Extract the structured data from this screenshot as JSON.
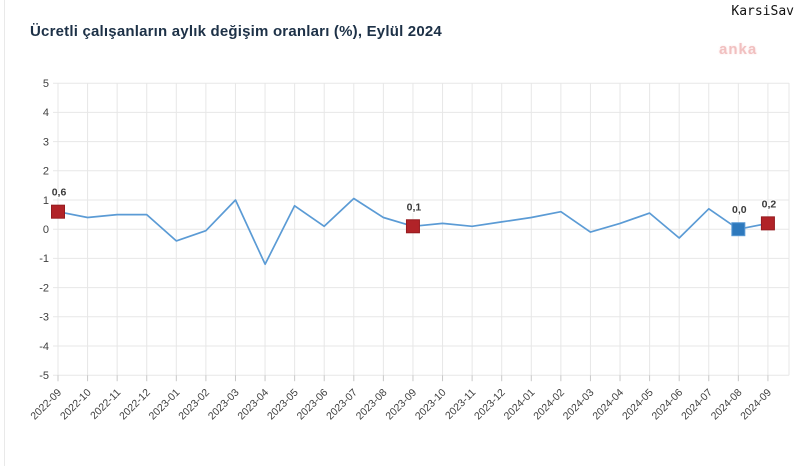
{
  "header": {
    "title": "Ücretli çalışanların aylık değişim oranları (%), Eylül 2024",
    "corner_text": "KarsiSav",
    "watermark": "anka"
  },
  "colors": {
    "title_text": "#1d3147",
    "line": "#5b9bd5",
    "marker_red_fill": "#b12328",
    "marker_red_stroke": "#951b1f",
    "marker_blue_fill": "#2e79bd",
    "marker_blue_stroke": "#5b9bd5",
    "grid": "#e7e7e7",
    "tick": "#c8c8c8",
    "axis_text": "#3f3f3f",
    "data_label_text": "#3a3a3a",
    "watermark_pink": "#edacac"
  },
  "chart_data": {
    "type": "line",
    "title": "Ücretli çalışanların aylık değişim oranları (%), Eylül 2024",
    "xlabel": "",
    "ylabel": "",
    "ylim": [
      -5,
      5
    ],
    "y_ticks": [
      5,
      4,
      3,
      2,
      1,
      0,
      -1,
      -2,
      -3,
      -4,
      -5
    ],
    "grid": true,
    "legend_position": "none",
    "number_format": "comma-decimal",
    "categories": [
      "2022-09",
      "2022-10",
      "2022-11",
      "2022-12",
      "2023-01",
      "2023-02",
      "2023-03",
      "2023-04",
      "2023-05",
      "2023-06",
      "2023-07",
      "2023-08",
      "2023-09",
      "2023-10",
      "2023-11",
      "2023-12",
      "2024-01",
      "2024-02",
      "2024-03",
      "2024-04",
      "2024-05",
      "2024-06",
      "2024-07",
      "2024-08",
      "2024-09"
    ],
    "values": [
      0.6,
      0.4,
      0.5,
      0.5,
      -0.4,
      -0.05,
      1.0,
      -1.2,
      0.8,
      0.1,
      1.05,
      0.4,
      0.1,
      0.2,
      0.1,
      0.25,
      0.4,
      0.6,
      -0.1,
      0.2,
      0.55,
      -0.3,
      0.7,
      0.0,
      0.2
    ],
    "highlighted_points": [
      {
        "category": "2022-09",
        "value": 0.6,
        "label": "0,6",
        "color": "red"
      },
      {
        "category": "2023-09",
        "value": 0.1,
        "label": "0,1",
        "color": "red"
      },
      {
        "category": "2024-08",
        "value": 0.0,
        "label": "0,0",
        "color": "blue"
      },
      {
        "category": "2024-09",
        "value": 0.2,
        "label": "0,2",
        "color": "red"
      }
    ]
  }
}
